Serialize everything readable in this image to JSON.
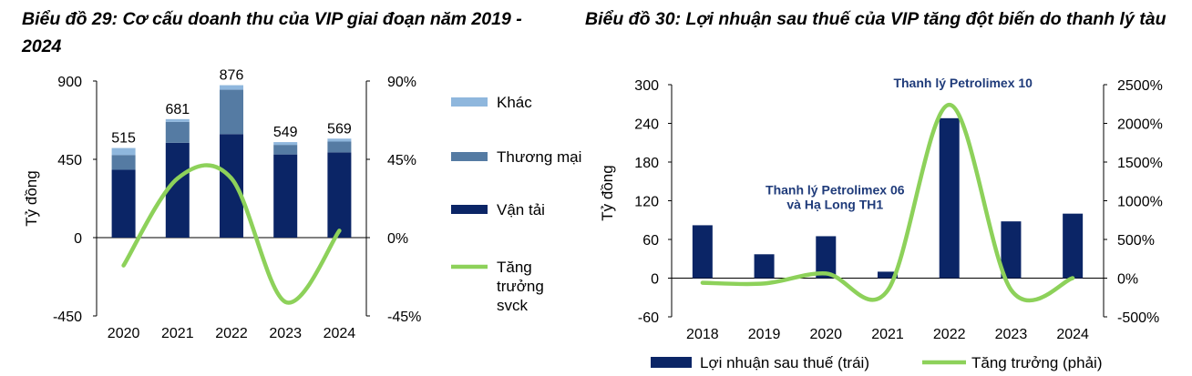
{
  "chart_data": [
    {
      "type": "bar",
      "title": "Biểu đồ 29: Cơ cấu doanh thu của VIP giai đoạn năm 2019 - 2024",
      "ylabel": "Tỷ đồng",
      "ylim": [
        -450,
        900
      ],
      "y_ticks": [
        "900",
        "450",
        "0",
        "-450"
      ],
      "y2lim": [
        -45,
        90
      ],
      "y2_ticks": [
        "90%",
        "45%",
        "0%",
        "-45%"
      ],
      "categories": [
        "2020",
        "2021",
        "2022",
        "2023",
        "2024"
      ],
      "stacked": true,
      "series": [
        {
          "name": "Vận tải",
          "values": [
            390,
            545,
            595,
            478,
            490
          ],
          "color": "#0b2566",
          "axis": "left"
        },
        {
          "name": "Thương mại",
          "values": [
            85,
            120,
            255,
            55,
            62
          ],
          "color": "#557ba3",
          "axis": "left"
        },
        {
          "name": "Khác",
          "values": [
            40,
            16,
            26,
            16,
            17
          ],
          "color": "#8fb7dd",
          "axis": "left"
        },
        {
          "name": "Tăng trưởng svck",
          "type": "line",
          "values": [
            -16,
            34,
            34,
            -37,
            4
          ],
          "color": "#8dd15a",
          "axis": "right"
        }
      ],
      "data_labels": [
        "515",
        "681",
        "876",
        "549",
        "569"
      ],
      "legend": {
        "position": "right",
        "items": [
          {
            "label": "Khác",
            "color": "#8fb7dd",
            "kind": "box"
          },
          {
            "label": "Thương mại",
            "color": "#557ba3",
            "kind": "box"
          },
          {
            "label": "Vận tải",
            "color": "#0b2566",
            "kind": "box"
          },
          {
            "label": "Tăng trưởng svck",
            "color": "#8dd15a",
            "kind": "line"
          }
        ]
      }
    },
    {
      "type": "bar",
      "title": "Biểu đồ 30: Lợi nhuận sau thuế của VIP tăng đột biến do thanh lý tàu",
      "ylabel": "Tỷ đồng",
      "ylim": [
        -60,
        300
      ],
      "y_ticks": [
        "300",
        "240",
        "180",
        "120",
        "60",
        "0",
        "-60"
      ],
      "y2lim": [
        -500,
        2500
      ],
      "y2_ticks": [
        "2500%",
        "2000%",
        "1500%",
        "1000%",
        "500%",
        "0%",
        "-500%"
      ],
      "categories": [
        "2018",
        "2019",
        "2020",
        "2021",
        "2022",
        "2023",
        "2024"
      ],
      "series": [
        {
          "name": "Lợi nhuận sau thuế (trái)",
          "values": [
            82,
            37,
            65,
            10,
            248,
            88,
            100
          ],
          "color": "#0b2566",
          "axis": "left"
        },
        {
          "name": "Tăng trưởng (phải)",
          "type": "line",
          "values": [
            -60,
            -70,
            60,
            -160,
            2240,
            -150,
            0
          ],
          "color": "#8dd15a",
          "axis": "right"
        }
      ],
      "annotations": [
        {
          "text": "Thanh lý Petrolimex 10",
          "at": {
            "x": "2022",
            "y": 296
          }
        },
        {
          "text": "Thanh lý Petrolimex 06",
          "at": {
            "x": "2020",
            "y": 130
          }
        },
        {
          "text": "và Hạ Long TH1",
          "at": {
            "x": "2020",
            "y": 107
          }
        }
      ],
      "legend": {
        "position": "bottom",
        "items": [
          {
            "label": "Lợi nhuận sau thuế (trái)",
            "color": "#0b2566",
            "kind": "box"
          },
          {
            "label": "Tăng trưởng (phải)",
            "color": "#8dd15a",
            "kind": "line"
          }
        ]
      }
    }
  ]
}
